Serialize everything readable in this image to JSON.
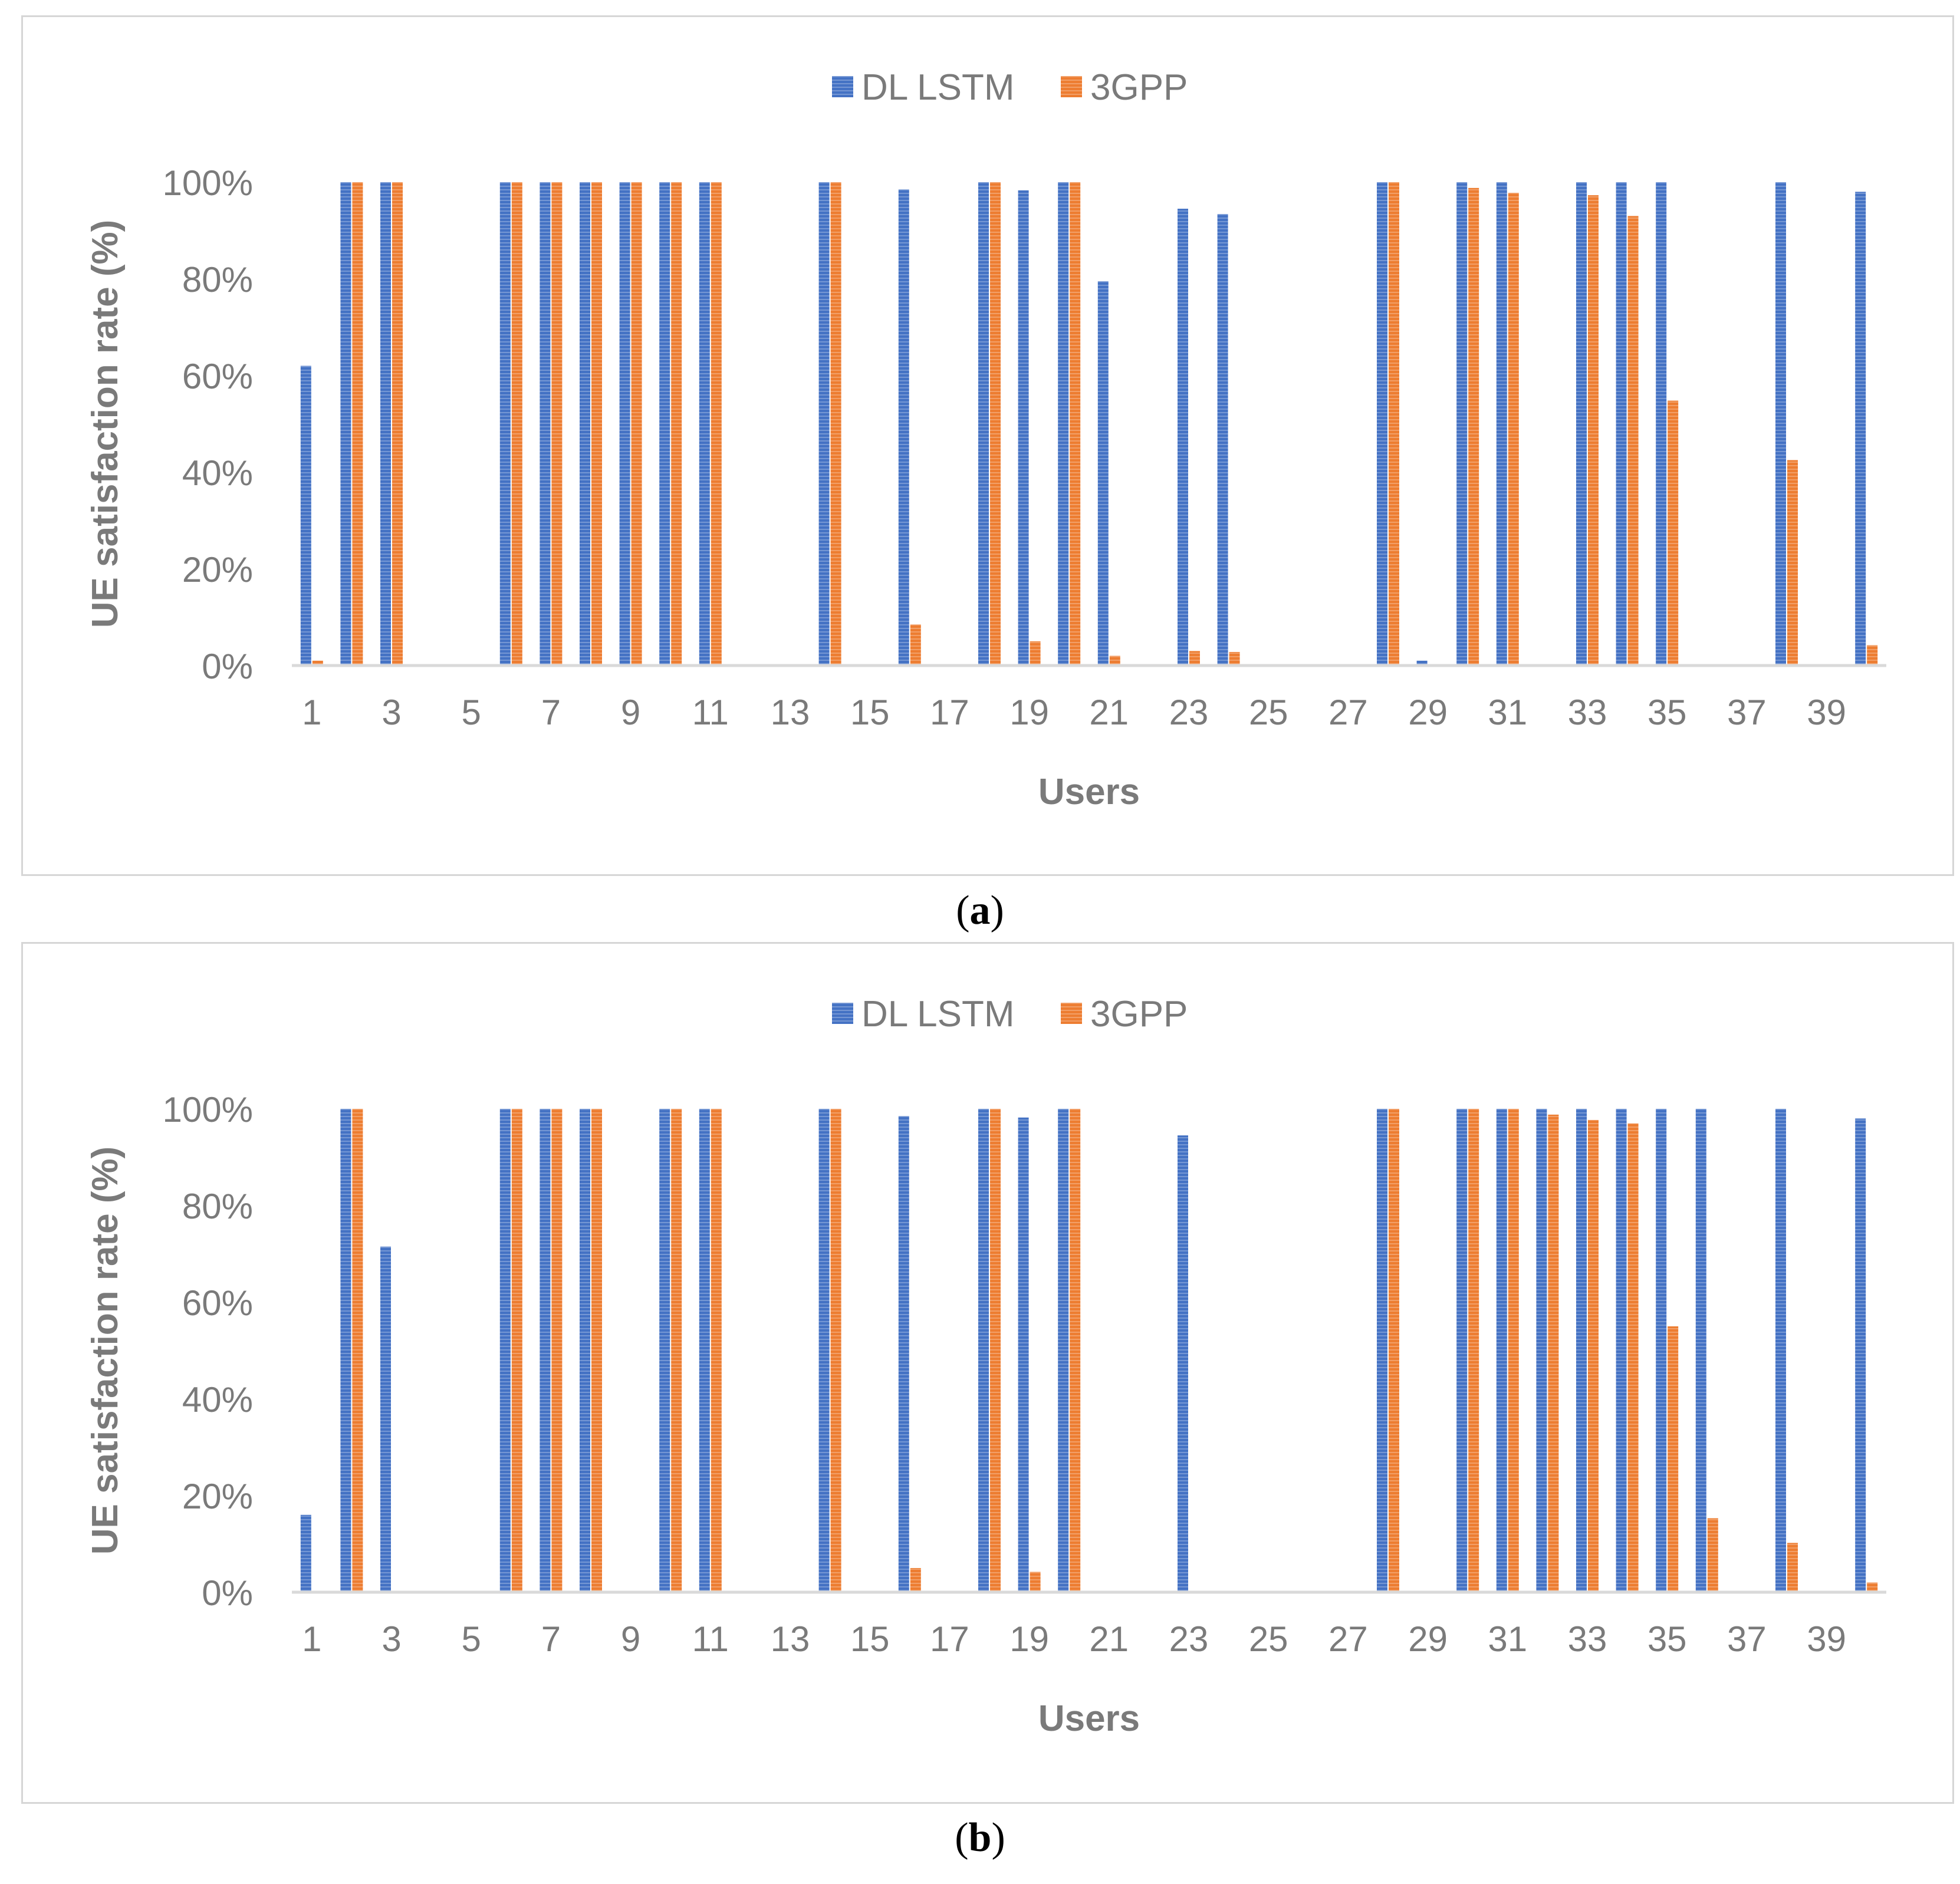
{
  "chart_data": [
    {
      "type": "bar",
      "panel_label": "a",
      "title": "",
      "xlabel": "Users",
      "ylabel": "UE satisfaction rate (%)",
      "ylim": [
        0,
        100
      ],
      "yticks": [
        "0%",
        "20%",
        "40%",
        "60%",
        "80%",
        "100%"
      ],
      "xticks": [
        "1",
        "3",
        "5",
        "7",
        "9",
        "11",
        "13",
        "15",
        "17",
        "19",
        "21",
        "23",
        "25",
        "27",
        "29",
        "31",
        "33",
        "35",
        "37",
        "39"
      ],
      "legend_position": "top-center",
      "categories": [
        1,
        2,
        3,
        4,
        5,
        6,
        7,
        8,
        9,
        10,
        11,
        12,
        13,
        14,
        15,
        16,
        17,
        18,
        19,
        20,
        21,
        22,
        23,
        24,
        25,
        26,
        27,
        28,
        29,
        30,
        31,
        32,
        33,
        34,
        35,
        36,
        37,
        38,
        39,
        40
      ],
      "series": [
        {
          "name": "DL LSTM",
          "color": "#4472c4",
          "values": [
            62,
            100,
            100,
            0,
            0,
            100,
            100,
            100,
            100,
            100,
            100,
            0,
            0,
            100,
            0,
            98.5,
            0,
            100,
            98.3,
            100,
            79.5,
            0,
            94.5,
            93.4,
            0,
            0,
            0,
            100,
            1,
            100,
            100,
            0,
            100,
            100,
            100,
            0,
            0,
            100,
            0,
            98
          ]
        },
        {
          "name": "3GPP",
          "color": "#ed7d31",
          "values": [
            1,
            100,
            100,
            0,
            0,
            100,
            100,
            100,
            100,
            100,
            100,
            0,
            0,
            100,
            0,
            8.5,
            0,
            100,
            5,
            100,
            2,
            0,
            3,
            2.8,
            0,
            0,
            0,
            100,
            0,
            98.8,
            97.8,
            0,
            97.3,
            93,
            54.8,
            0,
            0,
            42.5,
            0,
            4.2
          ]
        }
      ]
    },
    {
      "type": "bar",
      "panel_label": "b",
      "title": "",
      "xlabel": "Users",
      "ylabel": "UE satisfaction rate (%)",
      "ylim": [
        0,
        100
      ],
      "yticks": [
        "0%",
        "20%",
        "40%",
        "60%",
        "80%",
        "100%"
      ],
      "xticks": [
        "1",
        "3",
        "5",
        "7",
        "9",
        "11",
        "13",
        "15",
        "17",
        "19",
        "21",
        "23",
        "25",
        "27",
        "29",
        "31",
        "33",
        "35",
        "37",
        "39"
      ],
      "legend_position": "top-center",
      "categories": [
        1,
        2,
        3,
        4,
        5,
        6,
        7,
        8,
        9,
        10,
        11,
        12,
        13,
        14,
        15,
        16,
        17,
        18,
        19,
        20,
        21,
        22,
        23,
        24,
        25,
        26,
        27,
        28,
        29,
        30,
        31,
        32,
        33,
        34,
        35,
        36,
        37,
        38,
        39,
        40
      ],
      "series": [
        {
          "name": "DL LSTM",
          "color": "#4472c4",
          "values": [
            16,
            100,
            71.5,
            0,
            0,
            100,
            100,
            100,
            0,
            100,
            100,
            0,
            0,
            100,
            0,
            98.5,
            0,
            100,
            98.2,
            100,
            0,
            0,
            94.5,
            0,
            0,
            0,
            0,
            100,
            0,
            100,
            100,
            100,
            100,
            100,
            100,
            100,
            0,
            100,
            0,
            98
          ]
        },
        {
          "name": "3GPP",
          "color": "#ed7d31",
          "values": [
            0,
            100,
            0,
            0,
            0,
            100,
            100,
            100,
            0,
            100,
            100,
            0,
            0,
            100,
            0,
            5,
            0,
            100,
            4.2,
            100,
            0,
            0,
            0,
            0,
            0,
            0,
            0,
            100,
            0,
            100,
            100,
            98.8,
            97.7,
            97,
            55,
            15.3,
            0,
            10.2,
            0,
            2
          ]
        }
      ]
    }
  ],
  "captions": [
    {
      "open": "(",
      "label": "a",
      "close": ")"
    },
    {
      "open": "(",
      "label": "b",
      "close": ")"
    }
  ]
}
